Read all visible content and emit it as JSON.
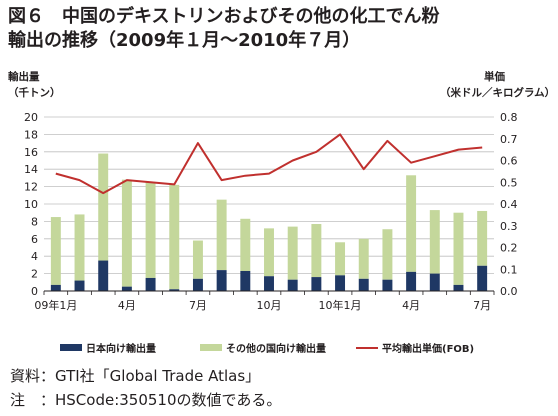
{
  "title": {
    "line1": "図６　中国のデキストリンおよびその他の化工でん粉",
    "line2": "輸出の推移（2009年１月～2010年７月）"
  },
  "colors": {
    "japan": "#1f3864",
    "other": "#c4d79b",
    "price": "#c0302e",
    "grid": "#bfbfbf",
    "axis": "#231f20"
  },
  "chart_data": {
    "type": "bar",
    "title": "図６　中国のデキストリンおよびその他の化工でん粉輸出の推移（2009年１月～2010年７月）",
    "y_left_label": [
      "輸出量",
      "（千トン）"
    ],
    "y_right_label": [
      "単価",
      "（米ドル／キログラム）"
    ],
    "y_left_lim": [
      0,
      20
    ],
    "y_left_ticks": [
      "0",
      "2",
      "4",
      "6",
      "8",
      "10",
      "12",
      "14",
      "16",
      "18",
      "20"
    ],
    "y_right_lim": [
      0,
      0.8
    ],
    "y_right_ticks": [
      "0.0",
      "0.1",
      "0.2",
      "0.3",
      "0.4",
      "0.5",
      "0.6",
      "0.7",
      "0.8"
    ],
    "x_tick_labels": [
      "09年1月",
      "",
      "",
      "4月",
      "",
      "",
      "7月",
      "",
      "",
      "10月",
      "",
      "",
      "10年1月",
      "",
      "",
      "4月",
      "",
      "",
      "7月"
    ],
    "grid": true,
    "stacked": true,
    "legend_position": "bottom",
    "series": [
      {
        "name": "日本向け輸出量",
        "type": "bar",
        "axis": "left",
        "values": [
          0.7,
          1.2,
          3.5,
          0.5,
          1.5,
          0.2,
          1.4,
          2.4,
          2.3,
          1.7,
          1.3,
          1.6,
          1.8,
          1.4,
          1.3,
          2.2,
          2.0,
          0.7,
          2.9
        ]
      },
      {
        "name": "その他の国向け輸出量",
        "type": "bar",
        "axis": "left",
        "values": [
          7.8,
          7.6,
          12.3,
          12.3,
          11.0,
          12.0,
          4.4,
          8.1,
          6.0,
          5.5,
          6.1,
          6.1,
          3.8,
          4.6,
          5.8,
          11.1,
          7.3,
          8.3,
          6.3
        ]
      },
      {
        "name": "平均輸出単価(FOB)",
        "type": "line",
        "axis": "right",
        "values": [
          0.54,
          0.51,
          0.45,
          0.51,
          0.5,
          0.49,
          0.68,
          0.51,
          0.53,
          0.54,
          0.6,
          0.64,
          0.72,
          0.56,
          0.69,
          0.59,
          0.62,
          0.65,
          0.66
        ]
      }
    ]
  },
  "notes": {
    "source": "資料：GTI社「Global Trade Atlas」",
    "note": "注　：HSCode:350510の数値である。"
  }
}
